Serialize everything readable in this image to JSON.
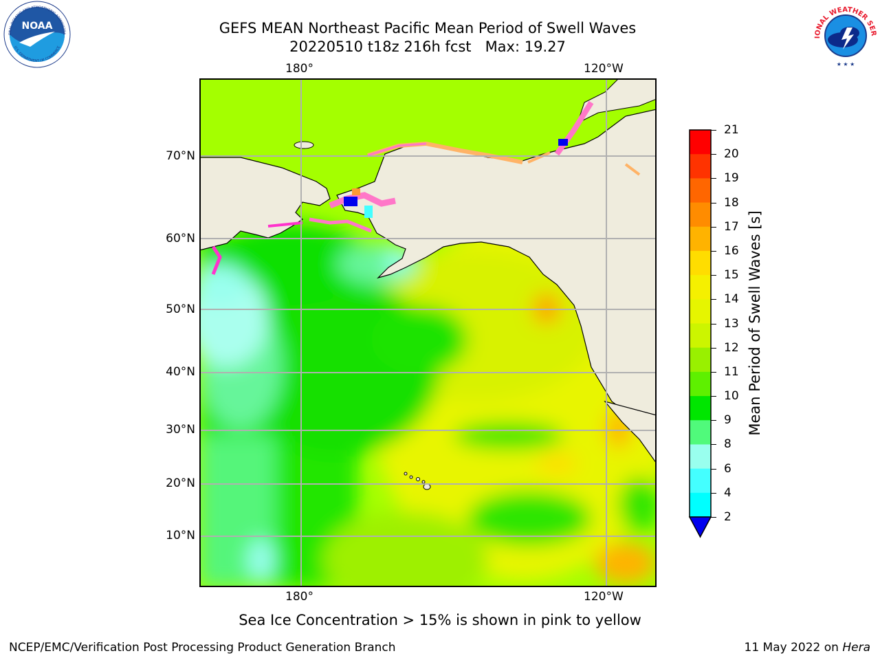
{
  "title": {
    "line1": "GEFS MEAN Northeast Pacific Mean Period of Swell Waves",
    "line2": "20220510 t18z 216h fcst   Max: 19.27"
  },
  "map": {
    "lon_labels": [
      "180°",
      "120°W"
    ],
    "lat_labels": [
      "70°N",
      "60°N",
      "50°N",
      "40°N",
      "30°N",
      "20°N",
      "10°N"
    ],
    "colors": {
      "land": "#efecdd",
      "ice": "#ff77c8",
      "grid": "#b0b0b0"
    }
  },
  "colorbar": {
    "label": "Mean Period of Swell Waves [s]",
    "ticks": [
      "21",
      "20",
      "19",
      "18",
      "17",
      "16",
      "15",
      "14",
      "13",
      "12",
      "11",
      "10",
      "9",
      "8",
      "6",
      "4",
      "2"
    ],
    "colors": [
      "#ff0000",
      "#ff3300",
      "#ff6600",
      "#ff8c00",
      "#ffb300",
      "#ffdd00",
      "#f5f000",
      "#e6f500",
      "#ccf500",
      "#99f000",
      "#5ef000",
      "#00e600",
      "#50fa7b",
      "#99ffee",
      "#44ffff",
      "#00ffff",
      "#00ccff",
      "#0055ff",
      "#0000ee"
    ]
  },
  "caption": "Sea Ice Concentration > 15% is shown in pink to yellow",
  "footer": {
    "left": "NCEP/EMC/Verification Post Processing Product Generation Branch",
    "right_date": "11 May 2022 on",
    "right_machine": "Hera"
  },
  "logos": {
    "noaa_text": "NOAA",
    "noaa_ring": "NATIONAL OCEANIC AND ATMOSPHERIC ADMINISTRATION",
    "noaa_ring_bottom": "U.S. DEPARTMENT OF COMMERCE",
    "nws_ring": "NATIONAL WEATHER SERVICE"
  }
}
